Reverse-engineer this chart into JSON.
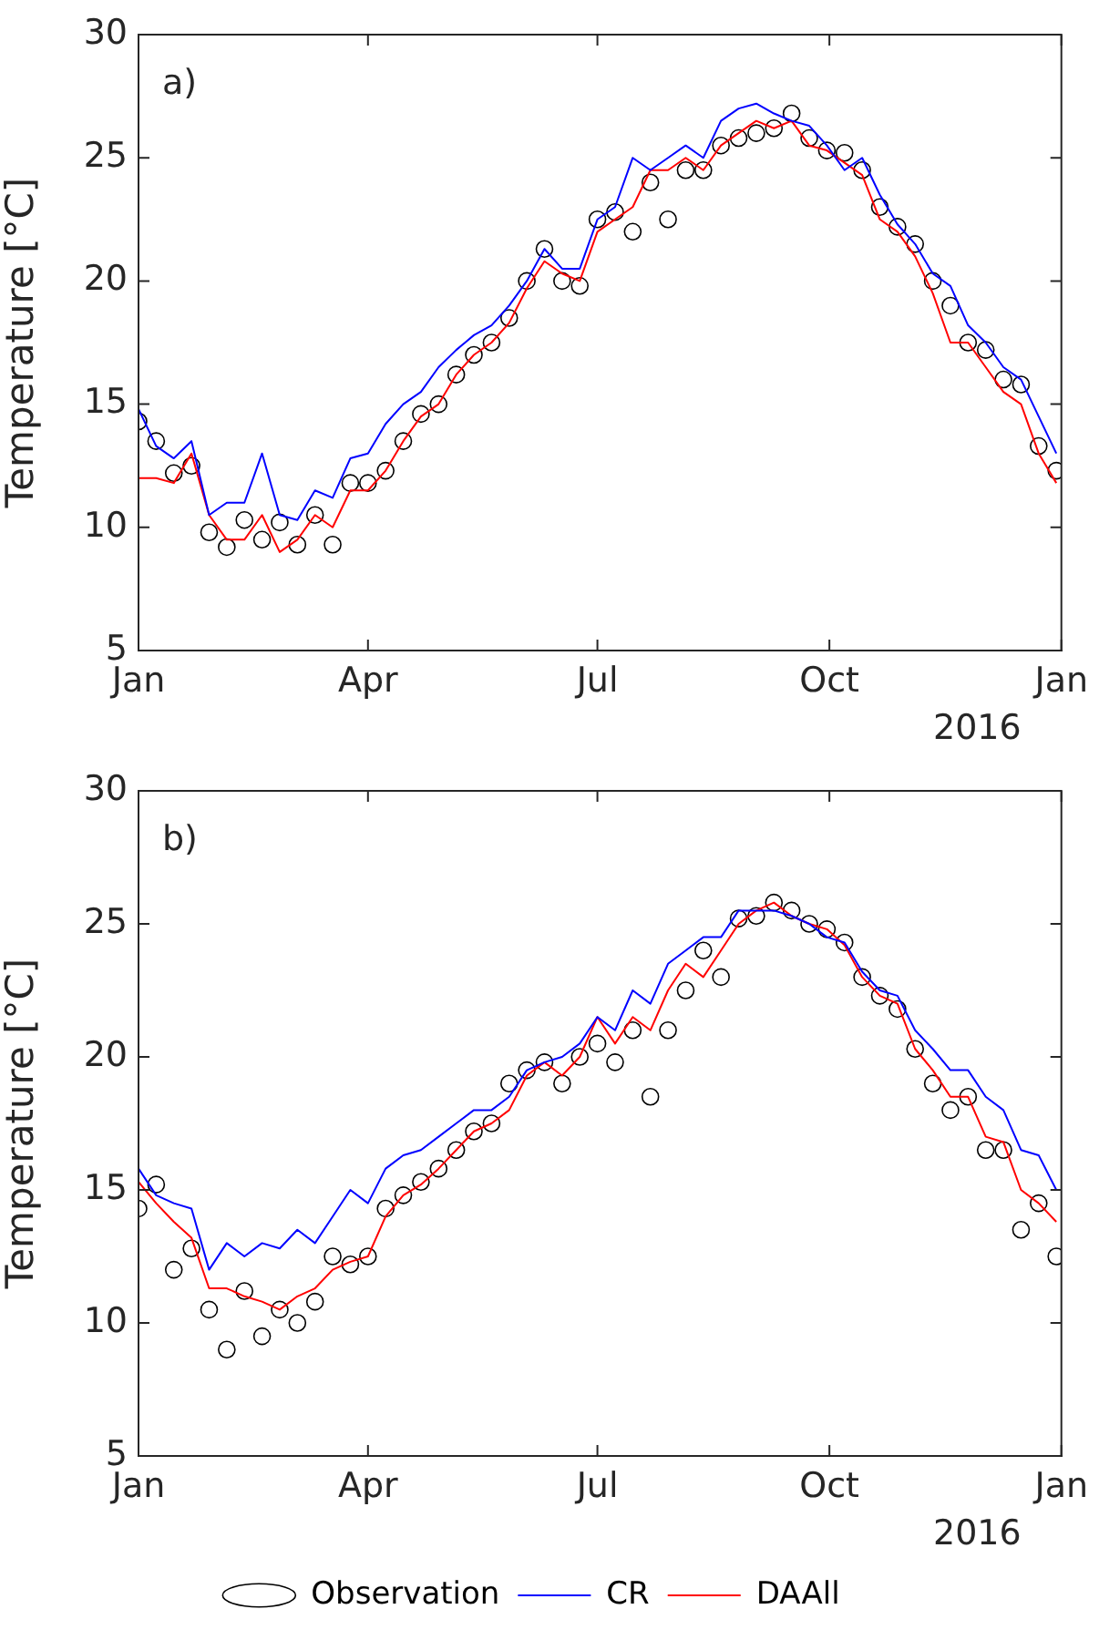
{
  "chart_data": [
    {
      "type": "line",
      "ylabel": "Temperature [°C]",
      "annotations": [
        "a)",
        "2016"
      ],
      "legend": false,
      "grid": false,
      "x": [
        "2016-01-01",
        "2016-01-08",
        "2016-01-15",
        "2016-01-22",
        "2016-01-29",
        "2016-02-05",
        "2016-02-12",
        "2016-02-19",
        "2016-02-26",
        "2016-03-04",
        "2016-03-11",
        "2016-03-18",
        "2016-03-25",
        "2016-04-01",
        "2016-04-08",
        "2016-04-15",
        "2016-04-22",
        "2016-04-29",
        "2016-05-06",
        "2016-05-13",
        "2016-05-20",
        "2016-05-27",
        "2016-06-03",
        "2016-06-10",
        "2016-06-17",
        "2016-06-24",
        "2016-07-01",
        "2016-07-08",
        "2016-07-15",
        "2016-07-22",
        "2016-07-29",
        "2016-08-05",
        "2016-08-12",
        "2016-08-19",
        "2016-08-26",
        "2016-09-02",
        "2016-09-09",
        "2016-09-16",
        "2016-09-23",
        "2016-09-30",
        "2016-10-07",
        "2016-10-14",
        "2016-10-21",
        "2016-10-28",
        "2016-11-04",
        "2016-11-11",
        "2016-11-18",
        "2016-11-25",
        "2016-12-02",
        "2016-12-09",
        "2016-12-16",
        "2016-12-23",
        "2016-12-30"
      ],
      "xlim": [
        "2016-01-01",
        "2017-01-01"
      ],
      "xticks": [
        {
          "value": "2016-01-01",
          "label": "Jan"
        },
        {
          "value": "2016-04-01",
          "label": "Apr"
        },
        {
          "value": "2016-07-01",
          "label": "Jul"
        },
        {
          "value": "2016-10-01",
          "label": "Oct"
        },
        {
          "value": "2017-01-01",
          "label": "Jan"
        }
      ],
      "ylim": [
        5,
        30
      ],
      "yticks": [
        5,
        10,
        15,
        20,
        25,
        30
      ],
      "series": [
        {
          "type": "scatter",
          "marker": "circle",
          "color": "#000000",
          "values": [
            14.3,
            13.5,
            12.2,
            12.5,
            9.8,
            9.2,
            10.3,
            9.5,
            10.2,
            9.3,
            10.5,
            9.3,
            11.8,
            11.8,
            12.3,
            13.5,
            14.6,
            15.0,
            16.2,
            17.0,
            17.5,
            18.5,
            20.0,
            21.3,
            20.0,
            19.8,
            22.5,
            22.8,
            22.0,
            24.0,
            22.5,
            24.5,
            24.5,
            25.5,
            25.8,
            26.0,
            26.2,
            26.8,
            25.8,
            25.3,
            25.2,
            24.5,
            23.0,
            22.2,
            21.5,
            20.0,
            19.0,
            17.5,
            17.2,
            16.0,
            15.8,
            13.3,
            12.3
          ]
        },
        {
          "marker": "none",
          "color": "#0000ff",
          "values": [
            14.8,
            13.3,
            12.8,
            13.5,
            10.5,
            11.0,
            11.0,
            13.0,
            10.5,
            10.3,
            11.5,
            11.2,
            12.8,
            13.0,
            14.2,
            15.0,
            15.5,
            16.5,
            17.2,
            17.8,
            18.2,
            19.0,
            20.0,
            21.3,
            20.5,
            20.5,
            22.5,
            23.0,
            25.0,
            24.5,
            25.0,
            25.5,
            25.0,
            26.5,
            27.0,
            27.2,
            26.8,
            26.5,
            26.3,
            25.5,
            24.5,
            25.0,
            23.5,
            22.3,
            21.5,
            20.3,
            19.8,
            18.2,
            17.5,
            16.5,
            16.0,
            14.5,
            13.0
          ]
        },
        {
          "marker": "none",
          "color": "#ff0000",
          "values": [
            12.0,
            12.0,
            11.8,
            13.0,
            10.5,
            9.5,
            9.5,
            10.5,
            9.0,
            9.5,
            10.5,
            10.0,
            11.5,
            11.5,
            12.3,
            13.5,
            14.5,
            15.0,
            16.2,
            17.0,
            17.5,
            18.3,
            19.7,
            20.8,
            20.3,
            20.0,
            22.0,
            22.5,
            23.0,
            24.5,
            24.5,
            25.0,
            24.5,
            25.5,
            26.0,
            26.5,
            26.2,
            26.5,
            25.5,
            25.3,
            24.8,
            24.3,
            22.5,
            22.0,
            21.0,
            19.5,
            17.5,
            17.5,
            16.5,
            15.5,
            15.0,
            13.0,
            11.8
          ]
        }
      ]
    },
    {
      "type": "line",
      "ylabel": "Temperature [°C]",
      "annotations": [
        "b)",
        "2016"
      ],
      "legend": "bottom",
      "grid": false,
      "x": [
        "2016-01-01",
        "2016-01-08",
        "2016-01-15",
        "2016-01-22",
        "2016-01-29",
        "2016-02-05",
        "2016-02-12",
        "2016-02-19",
        "2016-02-26",
        "2016-03-04",
        "2016-03-11",
        "2016-03-18",
        "2016-03-25",
        "2016-04-01",
        "2016-04-08",
        "2016-04-15",
        "2016-04-22",
        "2016-04-29",
        "2016-05-06",
        "2016-05-13",
        "2016-05-20",
        "2016-05-27",
        "2016-06-03",
        "2016-06-10",
        "2016-06-17",
        "2016-06-24",
        "2016-07-01",
        "2016-07-08",
        "2016-07-15",
        "2016-07-22",
        "2016-07-29",
        "2016-08-05",
        "2016-08-12",
        "2016-08-19",
        "2016-08-26",
        "2016-09-02",
        "2016-09-09",
        "2016-09-16",
        "2016-09-23",
        "2016-09-30",
        "2016-10-07",
        "2016-10-14",
        "2016-10-21",
        "2016-10-28",
        "2016-11-04",
        "2016-11-11",
        "2016-11-18",
        "2016-11-25",
        "2016-12-02",
        "2016-12-09",
        "2016-12-16",
        "2016-12-23",
        "2016-12-30"
      ],
      "xlim": [
        "2016-01-01",
        "2017-01-01"
      ],
      "xticks": [
        {
          "value": "2016-01-01",
          "label": "Jan"
        },
        {
          "value": "2016-04-01",
          "label": "Apr"
        },
        {
          "value": "2016-07-01",
          "label": "Jul"
        },
        {
          "value": "2016-10-01",
          "label": "Oct"
        },
        {
          "value": "2017-01-01",
          "label": "Jan"
        }
      ],
      "ylim": [
        5,
        30
      ],
      "yticks": [
        5,
        10,
        15,
        20,
        25,
        30
      ],
      "series": [
        {
          "type": "scatter",
          "marker": "circle",
          "name": "Observation",
          "color": "#000000",
          "values": [
            14.3,
            15.2,
            12.0,
            12.8,
            10.5,
            9.0,
            11.2,
            9.5,
            10.5,
            10.0,
            10.8,
            12.5,
            12.2,
            12.5,
            14.3,
            14.8,
            15.3,
            15.8,
            16.5,
            17.2,
            17.5,
            19.0,
            19.5,
            19.8,
            19.0,
            20.0,
            20.5,
            19.8,
            21.0,
            18.5,
            21.0,
            22.5,
            24.0,
            23.0,
            25.2,
            25.3,
            25.8,
            25.5,
            25.0,
            24.8,
            24.3,
            23.0,
            22.3,
            21.8,
            20.3,
            19.0,
            18.0,
            18.5,
            16.5,
            16.5,
            13.5,
            14.5,
            12.5
          ]
        },
        {
          "marker": "none",
          "name": "CR",
          "color": "#0000ff",
          "values": [
            15.8,
            14.8,
            14.5,
            14.3,
            12.0,
            13.0,
            12.5,
            13.0,
            12.8,
            13.5,
            13.0,
            14.0,
            15.0,
            14.5,
            15.8,
            16.3,
            16.5,
            17.0,
            17.5,
            18.0,
            18.0,
            18.5,
            19.5,
            19.8,
            20.0,
            20.5,
            21.5,
            21.0,
            22.5,
            22.0,
            23.5,
            24.0,
            24.5,
            24.5,
            25.5,
            25.5,
            25.5,
            25.3,
            25.0,
            24.5,
            24.3,
            23.2,
            22.5,
            22.3,
            21.0,
            20.3,
            19.5,
            19.5,
            18.5,
            18.0,
            16.5,
            16.3,
            15.0
          ]
        },
        {
          "marker": "none",
          "name": "DAAll",
          "color": "#ff0000",
          "values": [
            15.3,
            14.5,
            13.8,
            13.2,
            11.3,
            11.3,
            11.0,
            10.8,
            10.5,
            11.0,
            11.3,
            12.0,
            12.3,
            12.5,
            14.0,
            14.8,
            15.2,
            15.8,
            16.5,
            17.2,
            17.5,
            18.0,
            19.3,
            19.8,
            19.3,
            20.0,
            21.5,
            20.5,
            21.5,
            21.0,
            22.5,
            23.5,
            23.0,
            24.0,
            25.0,
            25.5,
            25.8,
            25.3,
            25.0,
            24.8,
            24.2,
            23.0,
            22.3,
            22.0,
            20.3,
            19.5,
            18.5,
            18.5,
            17.0,
            16.8,
            15.0,
            14.5,
            13.8
          ]
        }
      ]
    }
  ]
}
